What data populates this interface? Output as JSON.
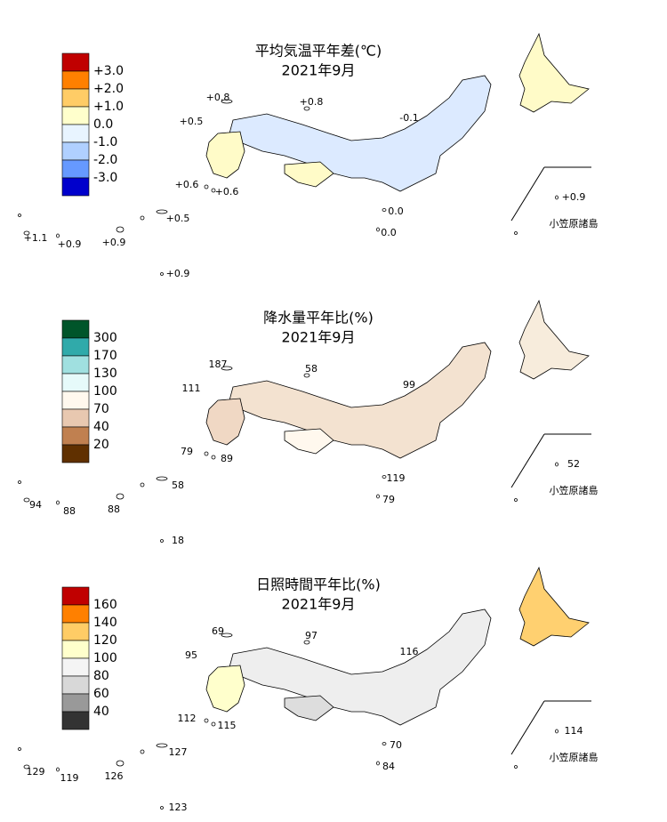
{
  "panels": [
    {
      "title": "平均気温平年差(℃)",
      "subtitle": "2021年9月",
      "legend_colors": [
        "#c00000",
        "#ff8000",
        "#ffcc66",
        "#ffffcc",
        "#e8f4ff",
        "#b0d0ff",
        "#6699ff",
        "#0000cc"
      ],
      "legend_labels": [
        "+3.0",
        "+2.0",
        "+1.0",
        "0.0",
        "-1.0",
        "-2.0",
        "-3.0"
      ],
      "labels": [
        "+0.8",
        "+0.8",
        "+0.5",
        "-0.1",
        "+0.6",
        "+0.6",
        "0.0",
        "+0.5",
        "+1.1",
        "+0.9",
        "+0.9",
        "0.0",
        "+0.9",
        "+0.9"
      ],
      "inset_label": "小笠原諸島"
    },
    {
      "title": "降水量平年比(%)",
      "subtitle": "2021年9月",
      "legend_colors": [
        "#00552a",
        "#30aaaa",
        "#a0e0e0",
        "#e6fafa",
        "#fff8ee",
        "#e8c8b0",
        "#c08050",
        "#603000"
      ],
      "legend_labels": [
        "300",
        "170",
        "130",
        "100",
        "70",
        "40",
        "20"
      ],
      "labels": [
        "187",
        "58",
        "111",
        "99",
        "79",
        "89",
        "119",
        "58",
        "94",
        "88",
        "88",
        "79",
        "18",
        "52"
      ],
      "inset_label": "小笠原諸島"
    },
    {
      "title": "日照時間平年比(%)",
      "subtitle": "2021年9月",
      "legend_colors": [
        "#c00000",
        "#ff8000",
        "#ffcc66",
        "#ffffcc",
        "#f4f4f4",
        "#d8d8d8",
        "#999999",
        "#333333"
      ],
      "legend_labels": [
        "160",
        "140",
        "120",
        "100",
        "80",
        "60",
        "40"
      ],
      "labels": [
        "69",
        "97",
        "95",
        "116",
        "112",
        "115",
        "70",
        "127",
        "129",
        "119",
        "126",
        "84",
        "123",
        "114"
      ],
      "inset_label": "小笠原諸島"
    }
  ]
}
